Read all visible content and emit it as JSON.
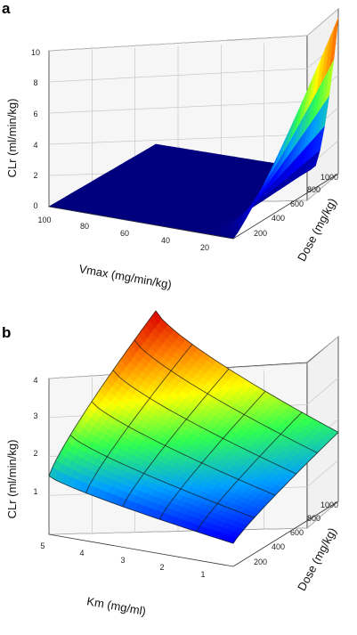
{
  "chart_data": [
    {
      "panel": "a",
      "type": "surface",
      "zlabel": "CLr (ml/min/kg)",
      "xlabel": "Vmax (mg/min/kg)",
      "ylabel": "Dose (mg/kg)",
      "zlim": [
        0,
        10
      ],
      "z_ticks": [
        "0",
        "2",
        "4",
        "6",
        "8",
        "10"
      ],
      "x_ticks": [
        "100",
        "80",
        "60",
        "40",
        "20"
      ],
      "y_ticks": [
        "200",
        "400",
        "600",
        "800",
        "1000"
      ],
      "x_range": [
        100,
        0
      ],
      "y_range": [
        0,
        1000
      ],
      "description_values": {
        "flat_value": 0,
        "peak_value_at_low_vmax_high_dose": 10
      },
      "colormap": [
        "#00007f",
        "#0000ff",
        "#00a0ff",
        "#30ff50",
        "#ffff00",
        "#ff8000",
        "#e01000"
      ]
    },
    {
      "panel": "b",
      "type": "surface",
      "zlabel": "CLr (ml/min/kg)",
      "xlabel": "Km (mg/ml)",
      "ylabel": "Dose (mg/kg)",
      "zlim": [
        0,
        4
      ],
      "z_ticks": [
        "1",
        "2",
        "3",
        "4"
      ],
      "x_ticks": [
        "5",
        "4",
        "3",
        "2",
        "1"
      ],
      "y_ticks": [
        "200",
        "400",
        "600",
        "800",
        "1000"
      ],
      "x_range": [
        5,
        0
      ],
      "y_range": [
        0,
        1000
      ],
      "description_values": {
        "value_at_high_km_low_dose": 4.2,
        "value_at_high_km_high_dose": 1.3,
        "value_at_low_km_low_dose": 1.6,
        "value_at_low_km_high_dose": 0.3
      },
      "colormap": [
        "#00007f",
        "#0000ff",
        "#00a0ff",
        "#30ff50",
        "#ffff00",
        "#ff8000",
        "#e01000"
      ]
    }
  ]
}
